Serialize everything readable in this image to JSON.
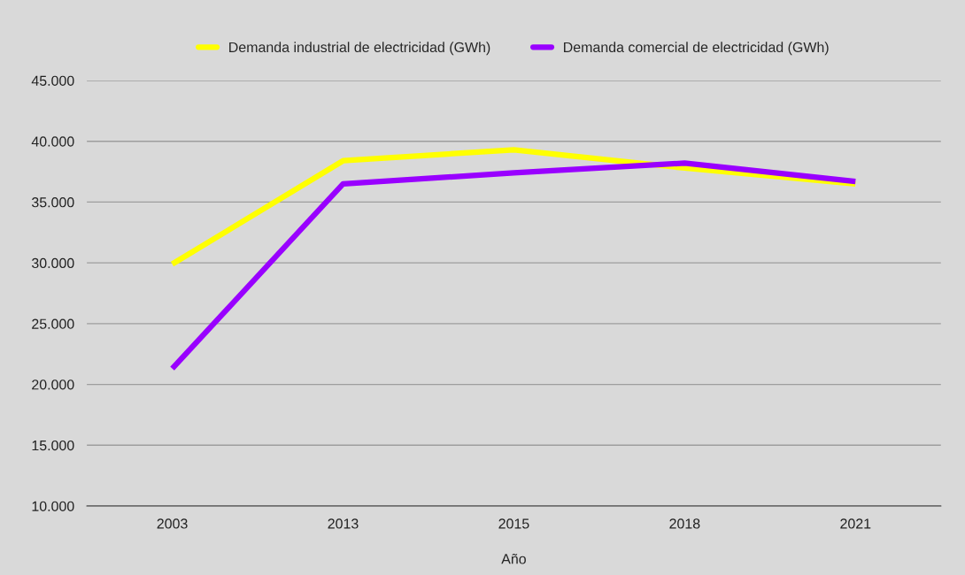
{
  "chart_data": {
    "type": "line",
    "xlabel": "Año",
    "categories": [
      "2003",
      "2013",
      "2015",
      "2018",
      "2021"
    ],
    "series": [
      {
        "name": "Demanda industrial de electricidad (GWh)",
        "color": "#ffff00",
        "values": [
          29900,
          38400,
          39300,
          37800,
          36500
        ]
      },
      {
        "name": "Demanda comercial de electricidad (GWh)",
        "color": "#9900ff",
        "values": [
          21300,
          36500,
          37400,
          38200,
          36700
        ]
      }
    ],
    "ylim": [
      10000,
      45000
    ],
    "yticks": [
      {
        "value": 10000,
        "label": "10.000"
      },
      {
        "value": 15000,
        "label": "15.000"
      },
      {
        "value": 20000,
        "label": "20.000"
      },
      {
        "value": 25000,
        "label": "25.000"
      },
      {
        "value": 30000,
        "label": "30.000"
      },
      {
        "value": 35000,
        "label": "35.000"
      },
      {
        "value": 40000,
        "label": "40.000"
      },
      {
        "value": 45000,
        "label": "45.000"
      }
    ],
    "grid": "y",
    "legend": "top",
    "marker": "none",
    "line_style": "solid"
  }
}
